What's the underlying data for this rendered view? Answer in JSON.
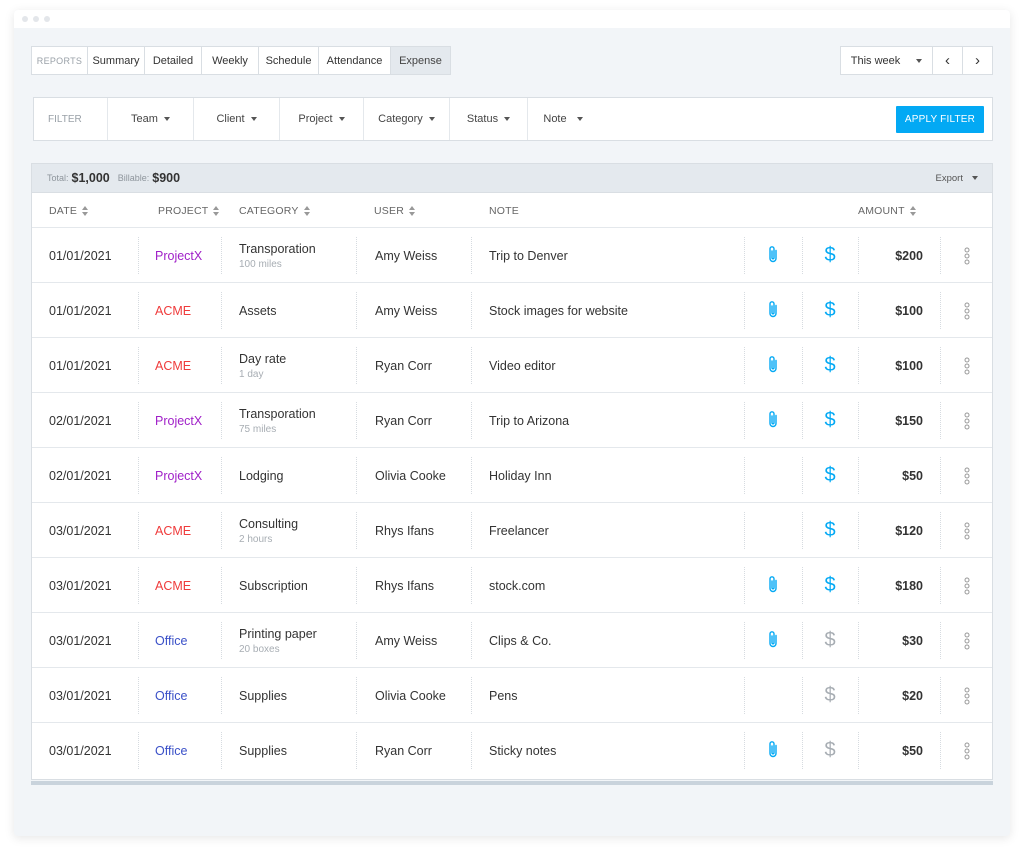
{
  "reports": {
    "label": "REPORTS",
    "tabs": [
      "Summary",
      "Detailed",
      "Weekly",
      "Schedule",
      "Attendance",
      "Expense"
    ],
    "active": "Expense"
  },
  "week": {
    "label": "This week",
    "prev": "‹",
    "next": "›"
  },
  "filter": {
    "label": "FILTER",
    "items": [
      "Team",
      "Client",
      "Project",
      "Category",
      "Status",
      "Note"
    ],
    "apply": "APPLY FILTER"
  },
  "totals": {
    "total_label": "Total:",
    "total": "$1,000",
    "billable_label": "Billable:",
    "billable": "$900",
    "export": "Export"
  },
  "columns": {
    "date": "DATE",
    "project": "PROJECT",
    "category": "CATEGORY",
    "user": "USER",
    "note": "NOTE",
    "amount": "AMOUNT"
  },
  "colors": {
    "accent": "#03a9f4",
    "projectx": "#a020c8",
    "acme": "#ef3b3b",
    "office": "#3a50c8",
    "nonbillable": "#a7adb3"
  },
  "rows": [
    {
      "date": "01/01/2021",
      "project": "ProjectX",
      "category": "Transporation",
      "sub": "100 miles",
      "user": "Amy Weiss",
      "note": "Trip to Denver",
      "attachment": true,
      "billable": true,
      "amount": "$200"
    },
    {
      "date": "01/01/2021",
      "project": "ACME",
      "category": "Assets",
      "sub": "",
      "user": "Amy Weiss",
      "note": "Stock images for website",
      "attachment": true,
      "billable": true,
      "amount": "$100"
    },
    {
      "date": "01/01/2021",
      "project": "ACME",
      "category": "Day rate",
      "sub": "1 day",
      "user": "Ryan Corr",
      "note": "Video editor",
      "attachment": true,
      "billable": true,
      "amount": "$100"
    },
    {
      "date": "02/01/2021",
      "project": "ProjectX",
      "category": "Transporation",
      "sub": "75 miles",
      "user": "Ryan Corr",
      "note": "Trip to Arizona",
      "attachment": true,
      "billable": true,
      "amount": "$150"
    },
    {
      "date": "02/01/2021",
      "project": "ProjectX",
      "category": "Lodging",
      "sub": "",
      "user": "Olivia Cooke",
      "note": "Holiday Inn",
      "attachment": false,
      "billable": true,
      "amount": "$50"
    },
    {
      "date": "03/01/2021",
      "project": "ACME",
      "category": "Consulting",
      "sub": "2 hours",
      "user": "Rhys Ifans",
      "note": "Freelancer",
      "attachment": false,
      "billable": true,
      "amount": "$120"
    },
    {
      "date": "03/01/2021",
      "project": "ACME",
      "category": "Subscription",
      "sub": "",
      "user": "Rhys Ifans",
      "note": "stock.com",
      "attachment": true,
      "billable": true,
      "amount": "$180"
    },
    {
      "date": "03/01/2021",
      "project": "Office",
      "category": "Printing paper",
      "sub": "20 boxes",
      "user": "Amy Weiss",
      "note": "Clips & Co.",
      "attachment": true,
      "billable": false,
      "amount": "$30"
    },
    {
      "date": "03/01/2021",
      "project": "Office",
      "category": "Supplies",
      "sub": "",
      "user": "Olivia Cooke",
      "note": "Pens",
      "attachment": false,
      "billable": false,
      "amount": "$20"
    },
    {
      "date": "03/01/2021",
      "project": "Office",
      "category": "Supplies",
      "sub": "",
      "user": "Ryan Corr",
      "note": "Sticky notes",
      "attachment": true,
      "billable": false,
      "amount": "$50"
    }
  ]
}
